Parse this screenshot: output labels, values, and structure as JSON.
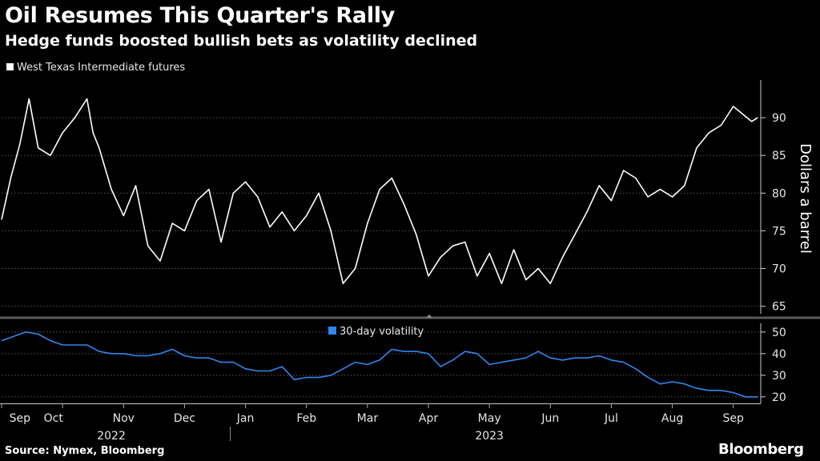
{
  "header": {
    "title": "Oil Resumes This Quarter's Rally",
    "subtitle": "Hedge funds boosted bullish bets as volatility declined"
  },
  "footer": {
    "source": "Source: Nymex, Bloomberg",
    "brand": "Bloomberg"
  },
  "colors": {
    "background": "#000000",
    "price_line": "#ffffff",
    "volatility_line": "#2f86f0",
    "grid": "#555555"
  },
  "chart_data": [
    {
      "type": "line",
      "title": "West Texas Intermediate futures",
      "legend": "West Texas Intermediate futures",
      "ylabel": "Dollars a barrel",
      "ylim": [
        64,
        95
      ],
      "yticks": [
        65,
        70,
        75,
        80,
        85,
        90
      ],
      "grid": true,
      "x_range_months": [
        0,
        12.45
      ],
      "x": [
        0,
        0.15,
        0.3,
        0.45,
        0.6,
        0.8,
        1.0,
        1.2,
        1.4,
        1.5,
        1.6,
        1.8,
        2.0,
        2.2,
        2.4,
        2.6,
        2.8,
        3.0,
        3.2,
        3.4,
        3.6,
        3.8,
        4.0,
        4.2,
        4.4,
        4.6,
        4.8,
        5.0,
        5.2,
        5.4,
        5.6,
        5.8,
        6.0,
        6.2,
        6.4,
        6.6,
        6.8,
        7.0,
        7.2,
        7.4,
        7.6,
        7.8,
        8.0,
        8.2,
        8.4,
        8.6,
        8.8,
        9.0,
        9.2,
        9.4,
        9.6,
        9.8,
        10.0,
        10.2,
        10.4,
        10.6,
        10.8,
        11.0,
        11.2,
        11.4,
        11.6,
        11.8,
        12.0,
        12.15,
        12.3,
        12.4
      ],
      "values": [
        76.5,
        82,
        86.5,
        92.5,
        86,
        85,
        88,
        90,
        92.5,
        88,
        86,
        80.5,
        77,
        81,
        73,
        71,
        76,
        75,
        79,
        80.5,
        73.5,
        80,
        81.5,
        79.5,
        75.5,
        77.5,
        75,
        77,
        80,
        75,
        68,
        70,
        76,
        80.5,
        82,
        78.5,
        74.5,
        69,
        71.5,
        73,
        73.5,
        69,
        72,
        68,
        72.5,
        68.5,
        70,
        68,
        71.5,
        74.5,
        77.5,
        81,
        79,
        83,
        82,
        79.5,
        80.5,
        79.5,
        81,
        86,
        88,
        89,
        91.5,
        90.5,
        89.5,
        90
      ],
      "series": [
        {
          "name": "West Texas Intermediate futures",
          "color": "#ffffff"
        }
      ]
    },
    {
      "type": "line",
      "title": "30-day volatility",
      "legend": "30-day volatility",
      "ylim": [
        17,
        54
      ],
      "yticks": [
        20,
        30,
        40,
        50
      ],
      "grid": true,
      "x_range_months": [
        0,
        12.45
      ],
      "x": [
        0,
        0.2,
        0.4,
        0.6,
        0.8,
        1.0,
        1.2,
        1.4,
        1.6,
        1.8,
        2.0,
        2.2,
        2.4,
        2.6,
        2.8,
        3.0,
        3.2,
        3.4,
        3.6,
        3.8,
        4.0,
        4.2,
        4.4,
        4.6,
        4.8,
        5.0,
        5.2,
        5.4,
        5.6,
        5.8,
        6.0,
        6.2,
        6.4,
        6.6,
        6.8,
        7.0,
        7.2,
        7.4,
        7.6,
        7.8,
        8.0,
        8.2,
        8.4,
        8.6,
        8.8,
        9.0,
        9.2,
        9.4,
        9.6,
        9.8,
        10.0,
        10.2,
        10.4,
        10.6,
        10.8,
        11.0,
        11.2,
        11.4,
        11.6,
        11.8,
        12.0,
        12.2,
        12.4
      ],
      "values": [
        46,
        48,
        50,
        49,
        46,
        44,
        44,
        44,
        41,
        40,
        40,
        39,
        39,
        40,
        42,
        39,
        38,
        38,
        36,
        36,
        33,
        32,
        32,
        34,
        28,
        29,
        29,
        30,
        33,
        36,
        35,
        37,
        42,
        41,
        41,
        40,
        34,
        37,
        41,
        40,
        35,
        36,
        37,
        38,
        41,
        38,
        37,
        38,
        38,
        39,
        37,
        36,
        33,
        29,
        26,
        27,
        26,
        24,
        23,
        23,
        22,
        20,
        20
      ],
      "series": [
        {
          "name": "30-day volatility",
          "color": "#2f86f0"
        }
      ]
    }
  ],
  "x_axis": {
    "ticks": [
      {
        "label": "Sep",
        "m": 0.3
      },
      {
        "label": "Oct",
        "m": 0.85
      },
      {
        "label": "Nov",
        "m": 2.0
      },
      {
        "label": "Dec",
        "m": 3.0
      },
      {
        "label": "Jan",
        "m": 4.0
      },
      {
        "label": "Feb",
        "m": 5.0
      },
      {
        "label": "Mar",
        "m": 6.0
      },
      {
        "label": "Apr",
        "m": 7.0
      },
      {
        "label": "May",
        "m": 8.0
      },
      {
        "label": "Jun",
        "m": 9.0
      },
      {
        "label": "Jul",
        "m": 10.0
      },
      {
        "label": "Aug",
        "m": 11.0
      },
      {
        "label": "Sep",
        "m": 12.0
      }
    ],
    "years": [
      {
        "label": "2022",
        "m": 1.8
      },
      {
        "label": "2023",
        "m": 8.0
      }
    ]
  }
}
